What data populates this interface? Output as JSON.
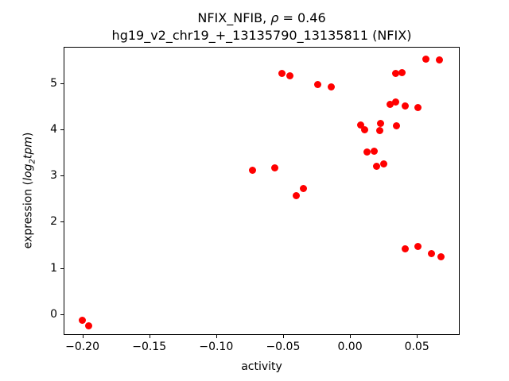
{
  "chart_data": {
    "type": "scatter",
    "title": {
      "line1_prefix": "NFIX_NFIB, ",
      "line1_rho": "ρ",
      "line1_suffix": " = 0.46",
      "line2": "hg19_v2_chr19_+_13135790_13135811 (NFIX)"
    },
    "xlabel": "activity",
    "ylabel": {
      "prefix": "expression (",
      "math_word1": "log",
      "math_sub": "2",
      "math_word2": "tpm",
      "suffix": ")"
    },
    "xlim": [
      -0.214,
      0.082
    ],
    "ylim": [
      -0.45,
      5.79
    ],
    "xticks": {
      "values": [
        -0.2,
        -0.15,
        -0.1,
        -0.05,
        0.0,
        0.05
      ],
      "labels": [
        "−0.20",
        "−0.15",
        "−0.10",
        "−0.05",
        "0.00",
        "0.05"
      ]
    },
    "yticks": {
      "values": [
        0,
        1,
        2,
        3,
        4,
        5
      ],
      "labels": [
        "0",
        "1",
        "2",
        "3",
        "4",
        "5"
      ]
    },
    "marker_color": "#ff0000",
    "grid": false,
    "legend": null,
    "points": [
      [
        -0.2,
        -0.13
      ],
      [
        -0.195,
        -0.26
      ],
      [
        -0.073,
        3.12
      ],
      [
        -0.056,
        3.17
      ],
      [
        -0.051,
        5.21
      ],
      [
        -0.045,
        5.16
      ],
      [
        -0.04,
        2.57
      ],
      [
        -0.035,
        2.73
      ],
      [
        -0.024,
        4.97
      ],
      [
        -0.014,
        4.93
      ],
      [
        0.008,
        4.1
      ],
      [
        0.011,
        4.0
      ],
      [
        0.013,
        3.51
      ],
      [
        0.018,
        3.53
      ],
      [
        0.022,
        3.98
      ],
      [
        0.023,
        4.13
      ],
      [
        0.02,
        3.2
      ],
      [
        0.025,
        3.25
      ],
      [
        0.03,
        4.54
      ],
      [
        0.034,
        4.6
      ],
      [
        0.041,
        4.51
      ],
      [
        0.051,
        4.48
      ],
      [
        0.035,
        4.08
      ],
      [
        0.034,
        5.21
      ],
      [
        0.039,
        5.23
      ],
      [
        0.041,
        1.42
      ],
      [
        0.051,
        1.47
      ],
      [
        0.061,
        1.32
      ],
      [
        0.068,
        1.25
      ],
      [
        0.057,
        5.53
      ],
      [
        0.067,
        5.51
      ]
    ]
  }
}
